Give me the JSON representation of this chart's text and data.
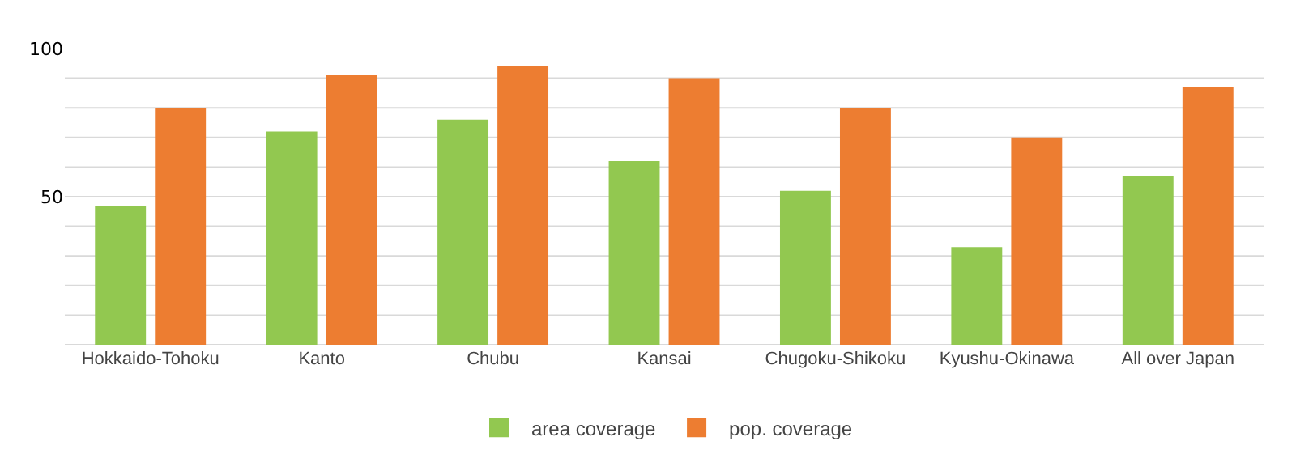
{
  "chart_data": {
    "type": "bar",
    "categories": [
      "Hokkaido-Tohoku",
      "Kanto",
      "Chubu",
      "Kansai",
      "Chugoku-Shikoku",
      "Kyushu-Okinawa",
      "All over Japan"
    ],
    "series": [
      {
        "name": "area coverage",
        "color": "#92c850",
        "values": [
          47,
          72,
          76,
          62,
          52,
          33,
          57
        ]
      },
      {
        "name": "pop. coverage",
        "color": "#ed7d31",
        "values": [
          80,
          91,
          94,
          90,
          80,
          70,
          87
        ]
      }
    ],
    "ylim": [
      0,
      100
    ],
    "yticks": [
      {
        "value": 0,
        "label": null
      },
      {
        "value": 10,
        "label": null
      },
      {
        "value": 20,
        "label": null
      },
      {
        "value": 30,
        "label": null
      },
      {
        "value": 40,
        "label": null
      },
      50,
      {
        "value": 60,
        "label": null
      },
      {
        "value": 70,
        "label": null
      },
      {
        "value": 80,
        "label": null
      },
      {
        "value": 90,
        "label": null
      },
      100
    ],
    "grid": "y",
    "legend": "bottom"
  }
}
